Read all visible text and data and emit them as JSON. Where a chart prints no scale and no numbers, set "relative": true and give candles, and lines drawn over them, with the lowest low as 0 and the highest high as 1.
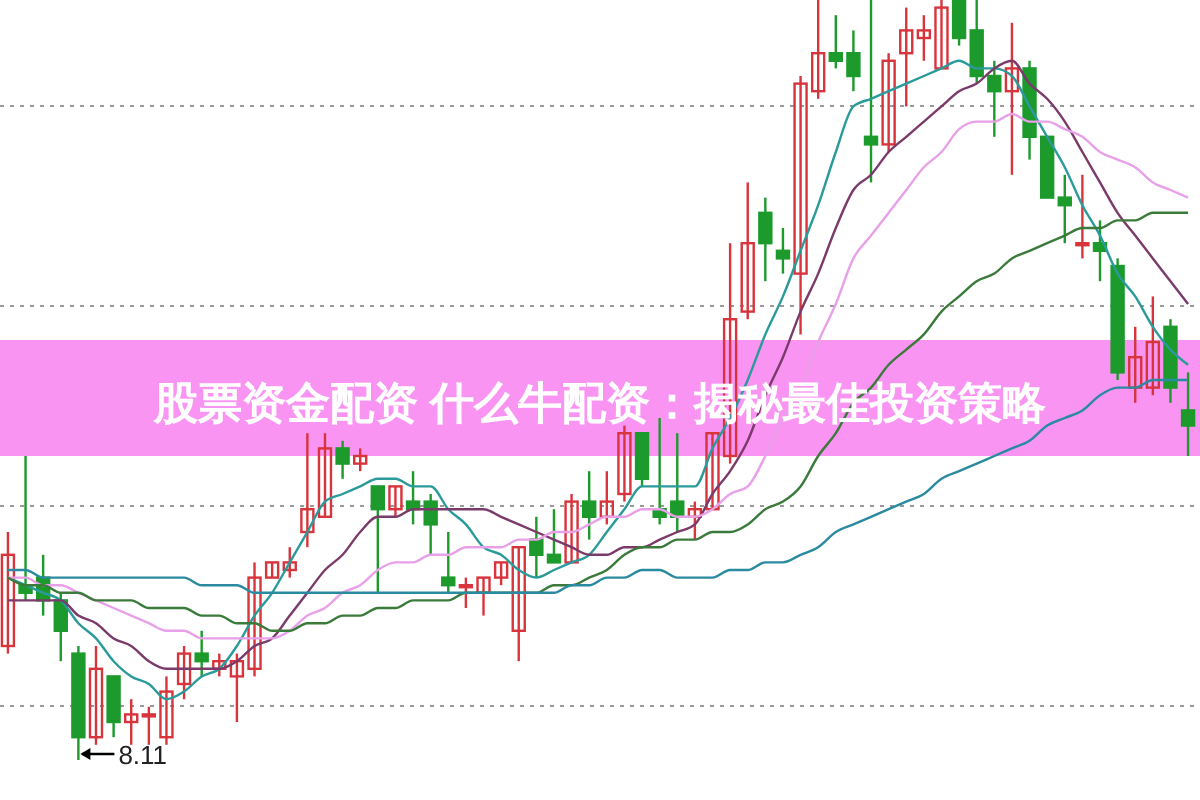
{
  "chart_data": {
    "type": "candlestick",
    "title": "股票资金配资 什么牛配资：揭秘最佳投资策略",
    "relative": true,
    "grid": "y",
    "annotations": [
      "8.11"
    ],
    "categories": [
      null,
      null,
      null,
      null,
      null,
      null,
      null,
      null,
      null,
      null,
      null,
      null,
      null,
      null,
      null,
      null,
      null,
      null,
      null,
      null,
      null,
      null,
      null,
      null,
      null,
      null,
      null,
      null,
      null,
      null,
      null,
      null,
      null,
      null,
      null,
      null,
      null,
      null,
      null,
      null,
      null,
      null,
      null,
      null,
      null,
      null,
      null,
      null,
      null,
      null,
      null,
      null,
      null,
      null,
      null,
      null,
      null,
      null,
      null,
      null,
      null,
      null,
      null,
      null,
      null,
      null,
      null,
      null
    ],
    "ohlc": [
      [
        0.15,
        0.3,
        0.14,
        0.27
      ],
      [
        0.23,
        0.4,
        0.21,
        0.22
      ],
      [
        0.24,
        0.27,
        0.19,
        0.21
      ],
      [
        0.21,
        0.22,
        0.13,
        0.17
      ],
      [
        0.14,
        0.15,
        0,
        0.03
      ],
      [
        0.03,
        0.15,
        0.02,
        0.12
      ],
      [
        0.11,
        0.11,
        0.03,
        0.05
      ],
      [
        0.05,
        0.08,
        0.02,
        0.06
      ],
      [
        0.06,
        0.07,
        0.02,
        0.06
      ],
      [
        0.03,
        0.11,
        0.02,
        0.09
      ],
      [
        0.1,
        0.15,
        0.08,
        0.14
      ],
      [
        0.14,
        0.17,
        0.11,
        0.13
      ],
      [
        0.12,
        0.14,
        0.11,
        0.13
      ],
      [
        0.11,
        0.14,
        0.05,
        0.13
      ],
      [
        0.12,
        0.26,
        0.11,
        0.24
      ],
      [
        0.24,
        0.26,
        0.24,
        0.26
      ],
      [
        0.25,
        0.28,
        0.24,
        0.26
      ],
      [
        0.3,
        0.43,
        0.28,
        0.33
      ],
      [
        0.32,
        0.43,
        0.32,
        0.41
      ],
      [
        0.41,
        0.42,
        0.37,
        0.39
      ],
      [
        0.39,
        0.41,
        0.38,
        0.4
      ],
      [
        0.36,
        0.36,
        0.22,
        0.33
      ],
      [
        0.33,
        0.36,
        0.32,
        0.36
      ],
      [
        0.34,
        0.38,
        0.31,
        0.33
      ],
      [
        0.34,
        0.35,
        0.27,
        0.31
      ],
      [
        0.24,
        0.3,
        0.22,
        0.23
      ],
      [
        0.23,
        0.24,
        0.2,
        0.23
      ],
      [
        0.22,
        0.24,
        0.19,
        0.24
      ],
      [
        0.24,
        0.26,
        0.23,
        0.26
      ],
      [
        0.17,
        0.28,
        0.13,
        0.28
      ],
      [
        0.29,
        0.32,
        0.24,
        0.27
      ],
      [
        0.27,
        0.33,
        0.26,
        0.26
      ],
      [
        0.26,
        0.35,
        0.26,
        0.34
      ],
      [
        0.34,
        0.38,
        0.29,
        0.32
      ],
      [
        0.32,
        0.38,
        0.31,
        0.34
      ],
      [
        0.35,
        0.44,
        0.34,
        0.43
      ],
      [
        0.43,
        0.43,
        0.36,
        0.37
      ],
      [
        0.33,
        0.45,
        0.31,
        0.32
      ],
      [
        0.34,
        0.43,
        0.3,
        0.32
      ],
      [
        0.32,
        0.34,
        0.29,
        0.33
      ],
      [
        0.33,
        0.43,
        0.33,
        0.43
      ],
      [
        0.4,
        0.68,
        0.39,
        0.58
      ],
      [
        0.59,
        0.76,
        0.58,
        0.68
      ],
      [
        0.72,
        0.74,
        0.63,
        0.68
      ],
      [
        0.67,
        0.7,
        0.64,
        0.66
      ],
      [
        0.64,
        0.9,
        0.56,
        0.89
      ],
      [
        0.88,
        1,
        0.87,
        0.93
      ],
      [
        0.93,
        0.98,
        0.91,
        0.92
      ],
      [
        0.93,
        0.96,
        0.88,
        0.9
      ],
      [
        0.82,
        1,
        0.76,
        0.81
      ],
      [
        0.81,
        0.93,
        0.8,
        0.92
      ],
      [
        0.93,
        0.99,
        0.86,
        0.96
      ],
      [
        0.95,
        0.98,
        0.92,
        0.96
      ],
      [
        0.91,
        1,
        0.91,
        0.99
      ],
      [
        1,
        1,
        0.94,
        0.95
      ],
      [
        0.96,
        1,
        0.89,
        0.9
      ],
      [
        0.9,
        0.92,
        0.82,
        0.88
      ],
      [
        0.88,
        0.97,
        0.77,
        0.91
      ],
      [
        0.91,
        0.92,
        0.79,
        0.82
      ],
      [
        0.82,
        0.82,
        0.74,
        0.74
      ],
      [
        0.74,
        0.77,
        0.68,
        0.73
      ],
      [
        0.68,
        0.77,
        0.66,
        0.68
      ],
      [
        0.68,
        0.71,
        0.63,
        0.67
      ],
      [
        0.65,
        0.66,
        0.5,
        0.51
      ],
      [
        0.49,
        0.57,
        0.47,
        0.53
      ],
      [
        0.49,
        0.61,
        0.48,
        0.55
      ],
      [
        0.57,
        0.58,
        0.47,
        0.49
      ],
      [
        0.46,
        0.51,
        0.4,
        0.44
      ]
    ],
    "colors": [
      "#d8343c",
      "#1c9a2c",
      "#1c9a2c",
      "#1c9a2c",
      "#1c9a2c",
      "#d8343c",
      "#1c9a2c",
      "#d8343c",
      "#d8343c",
      "#d8343c",
      "#d8343c",
      "#1c9a2c",
      "#d8343c",
      "#d8343c",
      "#d8343c",
      "#d8343c",
      "#d8343c",
      "#d8343c",
      "#d8343c",
      "#1c9a2c",
      "#d8343c",
      "#1c9a2c",
      "#d8343c",
      "#1c9a2c",
      "#1c9a2c",
      "#1c9a2c",
      "#d8343c",
      "#d8343c",
      "#d8343c",
      "#d8343c",
      "#1c9a2c",
      "#1c9a2c",
      "#d8343c",
      "#1c9a2c",
      "#d8343c",
      "#d8343c",
      "#1c9a2c",
      "#1c9a2c",
      "#1c9a2c",
      "#d8343c",
      "#d8343c",
      "#d8343c",
      "#d8343c",
      "#1c9a2c",
      "#1c9a2c",
      "#d8343c",
      "#d8343c",
      "#1c9a2c",
      "#1c9a2c",
      "#1c9a2c",
      "#d8343c",
      "#d8343c",
      "#d8343c",
      "#d8343c",
      "#1c9a2c",
      "#1c9a2c",
      "#1c9a2c",
      "#d8343c",
      "#1c9a2c",
      "#1c9a2c",
      "#1c9a2c",
      "#d8343c",
      "#1c9a2c",
      "#1c9a2c",
      "#d8343c",
      "#d8343c",
      "#1c9a2c",
      "#1c9a2c"
    ],
    "series": [
      {
        "type": "line",
        "color": "#2a9a9a",
        "values": [
          0.24,
          0.23,
          0.22,
          0.21,
          0.18,
          0.16,
          0.13,
          0.11,
          0.1,
          0.08,
          0.09,
          0.11,
          0.12,
          0.15,
          0.19,
          0.22,
          0.26,
          0.3,
          0.34,
          0.35,
          0.36,
          0.37,
          0.37,
          0.36,
          0.36,
          0.33,
          0.31,
          0.28,
          0.27,
          0.25,
          0.24,
          0.25,
          0.26,
          0.27,
          0.3,
          0.33,
          0.36,
          0.36,
          0.36,
          0.36,
          0.41,
          0.45,
          0.5,
          0.56,
          0.61,
          0.67,
          0.73,
          0.8,
          0.86,
          0.87,
          0.88,
          0.89,
          0.9,
          0.91,
          0.92,
          0.91,
          0.91,
          0.9,
          0.86,
          0.82,
          0.78,
          0.73,
          0.69,
          0.64,
          0.61,
          0.57,
          0.54,
          0.52
        ]
      },
      {
        "type": "line",
        "color": "#7a3a6a",
        "values": [
          0.21,
          0.21,
          0.21,
          0.21,
          0.19,
          0.18,
          0.16,
          0.15,
          0.13,
          0.12,
          0.12,
          0.12,
          0.12,
          0.13,
          0.15,
          0.16,
          0.19,
          0.22,
          0.25,
          0.27,
          0.3,
          0.32,
          0.32,
          0.33,
          0.33,
          0.33,
          0.33,
          0.33,
          0.32,
          0.31,
          0.3,
          0.29,
          0.28,
          0.27,
          0.27,
          0.28,
          0.28,
          0.29,
          0.3,
          0.31,
          0.35,
          0.38,
          0.42,
          0.48,
          0.53,
          0.59,
          0.64,
          0.7,
          0.75,
          0.77,
          0.8,
          0.82,
          0.84,
          0.86,
          0.88,
          0.89,
          0.91,
          0.92,
          0.89,
          0.87,
          0.84,
          0.8,
          0.76,
          0.72,
          0.69,
          0.66,
          0.63,
          0.6
        ]
      },
      {
        "type": "line",
        "color": "#e8a0e8",
        "values": [
          0.24,
          0.24,
          0.23,
          0.23,
          0.22,
          0.21,
          0.2,
          0.19,
          0.18,
          0.17,
          0.17,
          0.16,
          0.16,
          0.16,
          0.16,
          0.16,
          0.17,
          0.19,
          0.2,
          0.22,
          0.23,
          0.25,
          0.26,
          0.26,
          0.27,
          0.27,
          0.28,
          0.28,
          0.28,
          0.29,
          0.29,
          0.3,
          0.3,
          0.31,
          0.32,
          0.32,
          0.33,
          0.33,
          0.32,
          0.32,
          0.33,
          0.35,
          0.36,
          0.4,
          0.45,
          0.49,
          0.55,
          0.6,
          0.66,
          0.69,
          0.72,
          0.75,
          0.78,
          0.8,
          0.83,
          0.84,
          0.84,
          0.85,
          0.84,
          0.84,
          0.83,
          0.82,
          0.8,
          0.79,
          0.78,
          0.76,
          0.75,
          0.74
        ]
      },
      {
        "type": "line",
        "color": "#3a7a3a",
        "values": [
          0.24,
          0.23,
          0.23,
          0.22,
          0.22,
          0.21,
          0.21,
          0.21,
          0.2,
          0.2,
          0.2,
          0.19,
          0.19,
          0.18,
          0.18,
          0.17,
          0.17,
          0.18,
          0.18,
          0.19,
          0.19,
          0.2,
          0.2,
          0.21,
          0.21,
          0.21,
          0.22,
          0.22,
          0.22,
          0.22,
          0.22,
          0.23,
          0.23,
          0.24,
          0.25,
          0.27,
          0.28,
          0.28,
          0.29,
          0.29,
          0.3,
          0.3,
          0.31,
          0.33,
          0.34,
          0.36,
          0.4,
          0.43,
          0.47,
          0.49,
          0.52,
          0.54,
          0.56,
          0.59,
          0.61,
          0.63,
          0.64,
          0.66,
          0.67,
          0.68,
          0.69,
          0.7,
          0.7,
          0.71,
          0.71,
          0.72,
          0.72,
          0.72
        ]
      },
      {
        "type": "line",
        "color": "#2a8aa0",
        "values": [
          0.25,
          0.25,
          0.24,
          0.24,
          0.24,
          0.24,
          0.24,
          0.24,
          0.24,
          0.24,
          0.24,
          0.23,
          0.23,
          0.23,
          0.22,
          0.22,
          0.22,
          0.22,
          0.22,
          0.22,
          0.22,
          0.22,
          0.22,
          0.22,
          0.22,
          0.22,
          0.22,
          0.22,
          0.22,
          0.22,
          0.22,
          0.22,
          0.23,
          0.23,
          0.24,
          0.24,
          0.25,
          0.25,
          0.24,
          0.24,
          0.24,
          0.25,
          0.25,
          0.26,
          0.26,
          0.27,
          0.28,
          0.3,
          0.31,
          0.32,
          0.33,
          0.34,
          0.35,
          0.37,
          0.38,
          0.39,
          0.4,
          0.41,
          0.42,
          0.44,
          0.45,
          0.46,
          0.48,
          0.49,
          0.49,
          0.5,
          0.5,
          0.5
        ]
      }
    ]
  }
}
